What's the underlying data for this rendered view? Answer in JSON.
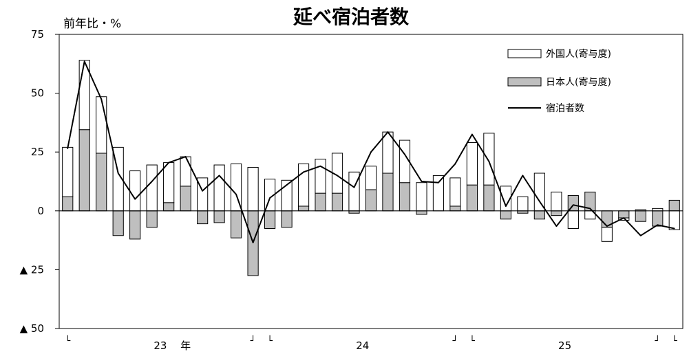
{
  "chart_data": {
    "type": "bar",
    "title": "延べ宿泊者数",
    "unit_label": "前年比・%",
    "ylim": [
      -50,
      75
    ],
    "y_ticks": [
      {
        "value": 75,
        "label": "75"
      },
      {
        "value": 50,
        "label": "50"
      },
      {
        "value": 25,
        "label": "25"
      },
      {
        "value": 0,
        "label": "0"
      },
      {
        "value": -25,
        "label": "▲ 25"
      },
      {
        "value": -50,
        "label": "▲ 50"
      }
    ],
    "year_labels": [
      {
        "text": "23",
        "pos": 5.5
      },
      {
        "text": "年",
        "pos": 7.0
      },
      {
        "text": "24",
        "pos": 17.5
      },
      {
        "text": "25",
        "pos": 29.5
      }
    ],
    "bracket_marks": [
      {
        "text": "└",
        "pos": 0
      },
      {
        "text": "┘",
        "pos": 11
      },
      {
        "text": "└",
        "pos": 12
      },
      {
        "text": "┘",
        "pos": 23
      },
      {
        "text": "└",
        "pos": 24
      },
      {
        "text": "┘",
        "pos": 35
      },
      {
        "text": "└",
        "pos": 36
      }
    ],
    "series": [
      {
        "name": "外国人(寄与度)",
        "type": "stacked-bar",
        "color": "#ffffff",
        "values": [
          21,
          29.5,
          24,
          27,
          17,
          19.5,
          17,
          12.5,
          14,
          19.5,
          20,
          18.5,
          13.5,
          13,
          18,
          14.5,
          17,
          16.5,
          10,
          17.5,
          18,
          12,
          15,
          12,
          18,
          22,
          10.5,
          6,
          16,
          8,
          -7.5,
          -3.5,
          -6,
          -1,
          0.5,
          1,
          -8
        ]
      },
      {
        "name": "日本人(寄与度)",
        "type": "stacked-bar",
        "color": "#bfbfbf",
        "values": [
          6,
          34.5,
          24.5,
          -10.5,
          -12,
          -7,
          3.5,
          10.5,
          -5.5,
          -5,
          -11.5,
          -27.5,
          -7.5,
          -7,
          2,
          7.5,
          7.5,
          -1,
          9,
          16,
          12,
          -1.5,
          0,
          2,
          11,
          11,
          -3.5,
          -1,
          -3.5,
          -2,
          6.5,
          8,
          -7,
          -3,
          -4.5,
          -6.5,
          4.5
        ]
      },
      {
        "name": "宿泊者数",
        "type": "line",
        "color": "#000000",
        "values": [
          26.5,
          63.5,
          47.5,
          16,
          5,
          12.5,
          20.5,
          23,
          8.5,
          15,
          7,
          -13.5,
          5.5,
          11,
          16.5,
          19,
          15,
          10,
          25,
          33.5,
          24,
          12.5,
          12,
          20,
          32.5,
          21,
          2,
          15,
          4,
          -6.5,
          2.5,
          1,
          -6.5,
          -3,
          -10.5,
          -6,
          -7.5
        ]
      }
    ],
    "legend": {
      "placement": "top-right",
      "foreign_label": "外国人(寄与度)",
      "japanese_label": "日本人(寄与度)",
      "total_label": "宿泊者数"
    }
  }
}
